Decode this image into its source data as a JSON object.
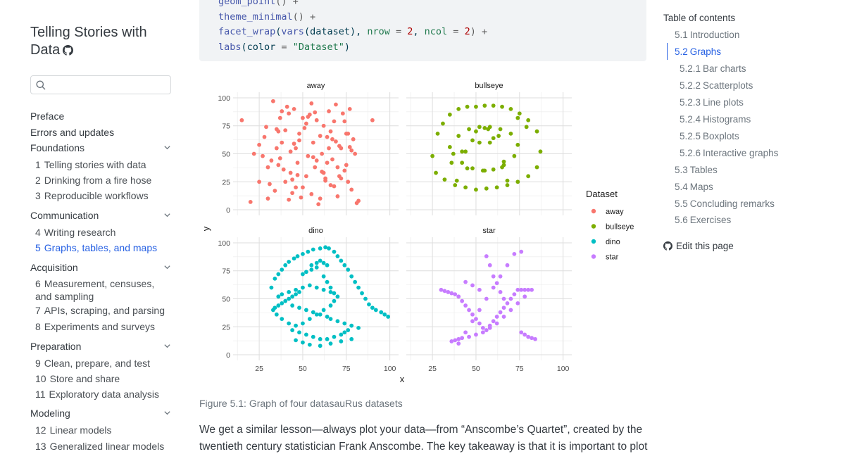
{
  "site": {
    "title": "Telling Stories with Data",
    "search_placeholder": ""
  },
  "sidebar": {
    "top_items": [
      "Preface",
      "Errors and updates"
    ],
    "sections": [
      {
        "label": "Foundations",
        "items": [
          {
            "num": "1",
            "label": "Telling stories with data"
          },
          {
            "num": "2",
            "label": "Drinking from a fire hose"
          },
          {
            "num": "3",
            "label": "Reproducible workflows"
          }
        ]
      },
      {
        "label": "Communication",
        "items": [
          {
            "num": "4",
            "label": "Writing research"
          },
          {
            "num": "5",
            "label": "Graphs, tables, and maps"
          }
        ]
      },
      {
        "label": "Acquisition",
        "items": [
          {
            "num": "6",
            "label": "Measurement, censuses, and sampling"
          },
          {
            "num": "7",
            "label": "APIs, scraping, and parsing"
          },
          {
            "num": "8",
            "label": "Experiments and surveys"
          }
        ]
      },
      {
        "label": "Preparation",
        "items": [
          {
            "num": "9",
            "label": "Clean, prepare, and test"
          },
          {
            "num": "10",
            "label": "Store and share"
          },
          {
            "num": "11",
            "label": "Exploratory data analysis"
          }
        ]
      },
      {
        "label": "Modeling",
        "items": [
          {
            "num": "12",
            "label": "Linear models"
          },
          {
            "num": "13",
            "label": "Generalized linear models"
          }
        ]
      }
    ],
    "active_item": "5"
  },
  "code": {
    "line1": {
      "fn": "geom_point",
      "rest": "() +"
    },
    "line2": {
      "fn": "theme_minimal",
      "rest": "() +"
    },
    "line3": {
      "fn": "facet_wrap",
      "p1": "(",
      "fn2": "vars",
      "p2": "(dataset), ",
      "a1": "nrow",
      "eq1": " = ",
      "n1": "2",
      "c": ", ",
      "a2": "ncol",
      "eq2": " = ",
      "n2": "2",
      "end": ") +"
    },
    "line4": {
      "fn": "labs",
      "p1": "(color ",
      "eq": "=",
      "sp": " ",
      "str": "\"Dataset\"",
      "end": ")"
    }
  },
  "chart_data": {
    "type": "scatter",
    "facets": [
      "away",
      "bullseye",
      "dino",
      "star"
    ],
    "xlabel": "x",
    "ylabel": "y",
    "x_ticks_left": [
      25,
      50,
      75,
      100
    ],
    "x_ticks_right": [
      25,
      50,
      75,
      100
    ],
    "y_ticks": [
      0,
      25,
      50,
      75,
      100
    ],
    "xlim": [
      10,
      105
    ],
    "ylim": [
      -5,
      105
    ],
    "legend_title": "Dataset",
    "legend_position": "right",
    "series": [
      {
        "name": "away",
        "color": "#f8766d",
        "x": [
          15,
          20,
          22,
          25,
          28,
          30,
          32,
          33,
          35,
          36,
          37,
          38,
          40,
          40,
          42,
          43,
          44,
          45,
          46,
          47,
          48,
          50,
          51,
          52,
          53,
          55,
          56,
          57,
          58,
          60,
          61,
          62,
          63,
          64,
          65,
          66,
          67,
          68,
          70,
          72,
          74,
          75,
          76,
          77,
          78,
          80,
          82,
          90,
          25,
          30,
          35,
          41,
          44,
          48,
          53,
          56,
          59,
          62,
          66,
          68,
          71,
          73,
          75,
          79,
          34,
          38,
          43,
          47,
          52,
          55,
          60,
          64,
          69,
          72,
          77,
          27,
          31,
          36,
          39,
          45,
          49,
          54,
          58,
          63,
          67,
          70,
          74,
          78,
          81,
          29,
          37,
          46,
          57,
          65,
          71,
          76,
          42,
          50,
          61,
          69
        ],
        "y": [
          80,
          7,
          50,
          25,
          65,
          10,
          44,
          97,
          55,
          40,
          82,
          60,
          25,
          71,
          86,
          33,
          15,
          90,
          55,
          42,
          68,
          20,
          73,
          30,
          48,
          95,
          60,
          38,
          80,
          10,
          50,
          75,
          28,
          65,
          88,
          22,
          45,
          79,
          12,
          55,
          35,
          68,
          25,
          90,
          18,
          50,
          8,
          80,
          58,
          38,
          72,
          92,
          27,
          62,
          83,
          47,
          5,
          33,
          70,
          21,
          57,
          86,
          40,
          63,
          17,
          88,
          52,
          31,
          77,
          14,
          66,
          42,
          94,
          28,
          56,
          48,
          23,
          70,
          36,
          59,
          11,
          85,
          44,
          26,
          63,
          38,
          79,
          53,
          6,
          74,
          46,
          20,
          87,
          55,
          30,
          68,
          9,
          82,
          34,
          61
        ]
      },
      {
        "name": "bullseye",
        "color": "#7cae00",
        "x": [
          25,
          28,
          31,
          35,
          40,
          45,
          50,
          55,
          60,
          65,
          70,
          75,
          80,
          85,
          87,
          85,
          80,
          74,
          68,
          62,
          56,
          50,
          44,
          38,
          32,
          27,
          35,
          40,
          46,
          52,
          58,
          64,
          70,
          74,
          72,
          66,
          60,
          54,
          48,
          42,
          37,
          36,
          45,
          55,
          65,
          52,
          60,
          48,
          42,
          50,
          57,
          63,
          58,
          55,
          66,
          74,
          79,
          68,
          39,
          44
        ],
        "y": [
          48,
          68,
          77,
          85,
          90,
          92,
          92,
          93,
          93,
          92,
          90,
          86,
          80,
          70,
          52,
          38,
          30,
          25,
          22,
          20,
          19,
          18,
          20,
          22,
          27,
          33,
          56,
          66,
          72,
          74,
          74,
          72,
          68,
          58,
          48,
          40,
          36,
          35,
          37,
          42,
          50,
          42,
          37,
          35,
          38,
          60,
          64,
          62,
          52,
          70,
          72,
          66,
          60,
          73,
          43,
          82,
          74,
          26,
          26,
          52
        ]
      },
      {
        "name": "dino",
        "color": "#00bfc4",
        "x": [
          32,
          34,
          36,
          38,
          40,
          42,
          45,
          47,
          50,
          53,
          56,
          60,
          63,
          65,
          68,
          70,
          72,
          74,
          76,
          78,
          80,
          82,
          84,
          86,
          88,
          90,
          92,
          95,
          97,
          99,
          55,
          58,
          60,
          62,
          64,
          58,
          55,
          52,
          50,
          48,
          46,
          44,
          42,
          40,
          38,
          36,
          34,
          33,
          35,
          38,
          42,
          46,
          50,
          54,
          58,
          62,
          66,
          68,
          70,
          66,
          62,
          58,
          54,
          50,
          46,
          42,
          38,
          36,
          44,
          48,
          52,
          56,
          60,
          64,
          68,
          72,
          74,
          76,
          78,
          72,
          66,
          60,
          54,
          50,
          46,
          44,
          48,
          52,
          56,
          60,
          64,
          66,
          70,
          74,
          78,
          82,
          62,
          64,
          66,
          68
        ],
        "y": [
          60,
          68,
          72,
          76,
          80,
          83,
          86,
          88,
          90,
          92,
          94,
          95,
          96,
          95,
          92,
          88,
          84,
          80,
          76,
          70,
          65,
          60,
          55,
          50,
          45,
          42,
          40,
          38,
          36,
          34,
          80,
          82,
          84,
          82,
          80,
          78,
          76,
          74,
          72,
          56,
          54,
          52,
          50,
          48,
          46,
          44,
          42,
          40,
          36,
          32,
          28,
          26,
          28,
          32,
          36,
          40,
          44,
          48,
          52,
          56,
          58,
          60,
          62,
          60,
          58,
          56,
          54,
          52,
          22,
          20,
          18,
          16,
          14,
          14,
          16,
          18,
          20,
          22,
          14,
          12,
          10,
          8,
          9,
          11,
          13,
          44,
          42,
          40,
          38,
          36,
          34,
          32,
          30,
          28,
          26,
          24,
          70,
          65,
          60,
          55
        ]
      },
      {
        "name": "star",
        "color": "#c77cff",
        "x": [
          30,
          32,
          34,
          36,
          38,
          40,
          42,
          44,
          46,
          48,
          50,
          52,
          54,
          56,
          58,
          60,
          62,
          64,
          66,
          68,
          70,
          72,
          74,
          76,
          78,
          80,
          82,
          78,
          74,
          70,
          66,
          62,
          58,
          54,
          50,
          46,
          42,
          40,
          38,
          36,
          40,
          44,
          48,
          52,
          56,
          60,
          64,
          68,
          72,
          76,
          56,
          58,
          60,
          62,
          64,
          66,
          52,
          48,
          44,
          76,
          78,
          80,
          82,
          84
        ],
        "y": [
          58,
          57,
          56,
          55,
          54,
          52,
          48,
          44,
          40,
          36,
          32,
          28,
          24,
          22,
          26,
          30,
          34,
          38,
          42,
          46,
          50,
          54,
          58,
          58,
          58,
          58,
          58,
          52,
          46,
          40,
          34,
          28,
          24,
          20,
          18,
          16,
          15,
          14,
          13,
          12,
          10,
          20,
          30,
          40,
          50,
          60,
          70,
          80,
          90,
          92,
          88,
          80,
          70,
          64,
          56,
          50,
          58,
          62,
          65,
          20,
          18,
          16,
          15,
          14
        ]
      }
    ]
  },
  "caption": "Figure 5.1: Graph of four datasauRus datasets",
  "body_text": "We get a similar lesson—always plot your data—from “Anscombe’s Quartet”, created by the twentieth century statistician Frank Anscombe. The key takeaway is that it is important to plot",
  "toc": {
    "title": "Table of contents",
    "items": [
      {
        "num": "5.1",
        "label": "Introduction",
        "level": 1
      },
      {
        "num": "5.2",
        "label": "Graphs",
        "level": 1,
        "active": true
      },
      {
        "num": "5.2.1",
        "label": "Bar charts",
        "level": 2
      },
      {
        "num": "5.2.2",
        "label": "Scatterplots",
        "level": 2
      },
      {
        "num": "5.2.3",
        "label": "Line plots",
        "level": 2
      },
      {
        "num": "5.2.4",
        "label": "Histograms",
        "level": 2
      },
      {
        "num": "5.2.5",
        "label": "Boxplots",
        "level": 2
      },
      {
        "num": "5.2.6",
        "label": "Interactive graphs",
        "level": 2
      },
      {
        "num": "5.3",
        "label": "Tables",
        "level": 1
      },
      {
        "num": "5.4",
        "label": "Maps",
        "level": 1
      },
      {
        "num": "5.5",
        "label": "Concluding remarks",
        "level": 1
      },
      {
        "num": "5.6",
        "label": "Exercises",
        "level": 1
      }
    ],
    "edit_label": "Edit this page"
  }
}
